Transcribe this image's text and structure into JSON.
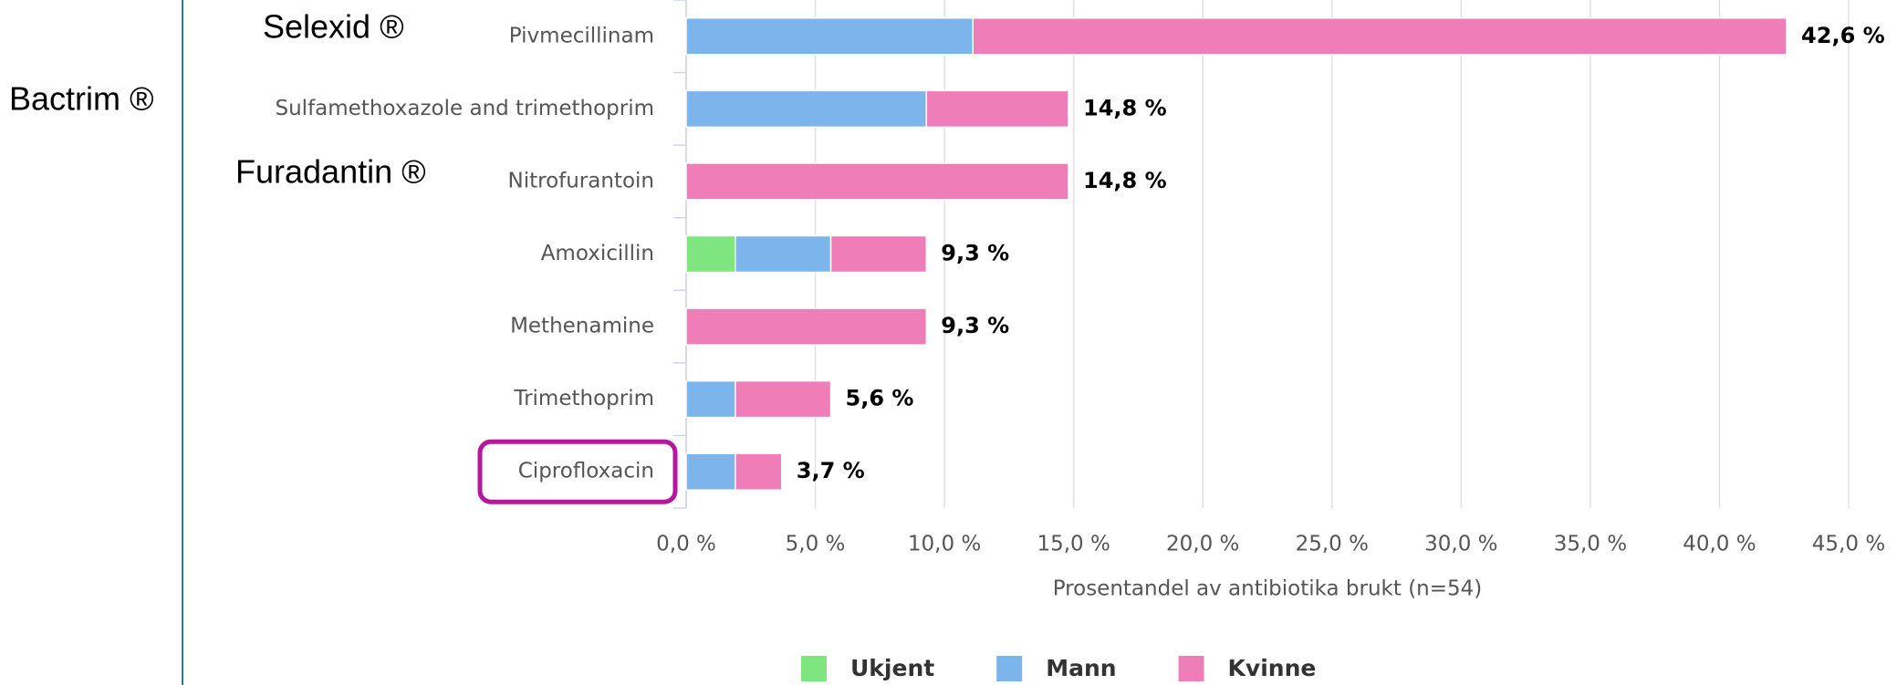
{
  "chart_data": {
    "type": "stacked-barh",
    "categories": [
      "Pivmecillinam",
      "Sulfamethoxazole and trimethoprim",
      "Nitrofurantoin",
      "Amoxicillin",
      "Methenamine",
      "Trimethoprim",
      "Ciprofloxacin"
    ],
    "series": [
      {
        "name": "Ukjent",
        "color": "#7fe57f",
        "values": [
          null,
          null,
          null,
          1.9,
          null,
          null,
          null
        ]
      },
      {
        "name": "Mann",
        "color": "#7cb5ec",
        "values": [
          11.1,
          9.3,
          null,
          3.7,
          null,
          1.9,
          1.9
        ]
      },
      {
        "name": "Kvinne",
        "color": "#ef7db8",
        "values": [
          31.5,
          5.5,
          14.8,
          3.7,
          9.3,
          3.7,
          1.8
        ]
      }
    ],
    "totals": [
      42.6,
      14.8,
      14.8,
      9.3,
      9.3,
      5.6,
      3.7
    ],
    "total_labels": [
      "42,6 %",
      "14,8 %",
      "14,8 %",
      "9,3 %",
      "9,3 %",
      "5,6 %",
      "3,7 %"
    ],
    "xlabel": "Prosentandel av antibiotika brukt (n=54)",
    "xlim": [
      0,
      45
    ],
    "xticks": [
      {
        "value": 0,
        "label": "0,0 %"
      },
      {
        "value": 5,
        "label": "5,0 %"
      },
      {
        "value": 10,
        "label": "10,0 %"
      },
      {
        "value": 15,
        "label": "15,0 %"
      },
      {
        "value": 20,
        "label": "20,0 %"
      },
      {
        "value": 25,
        "label": "25,0 %"
      },
      {
        "value": 30,
        "label": "30,0 %"
      },
      {
        "value": 35,
        "label": "35,0 %"
      },
      {
        "value": 40,
        "label": "40,0 %"
      },
      {
        "value": 45,
        "label": "45,0 %"
      }
    ],
    "grid": true,
    "legend": "bottom",
    "annotations": [
      "Selexid ®",
      "Bactrim ®",
      "Furadantin ®"
    ]
  }
}
